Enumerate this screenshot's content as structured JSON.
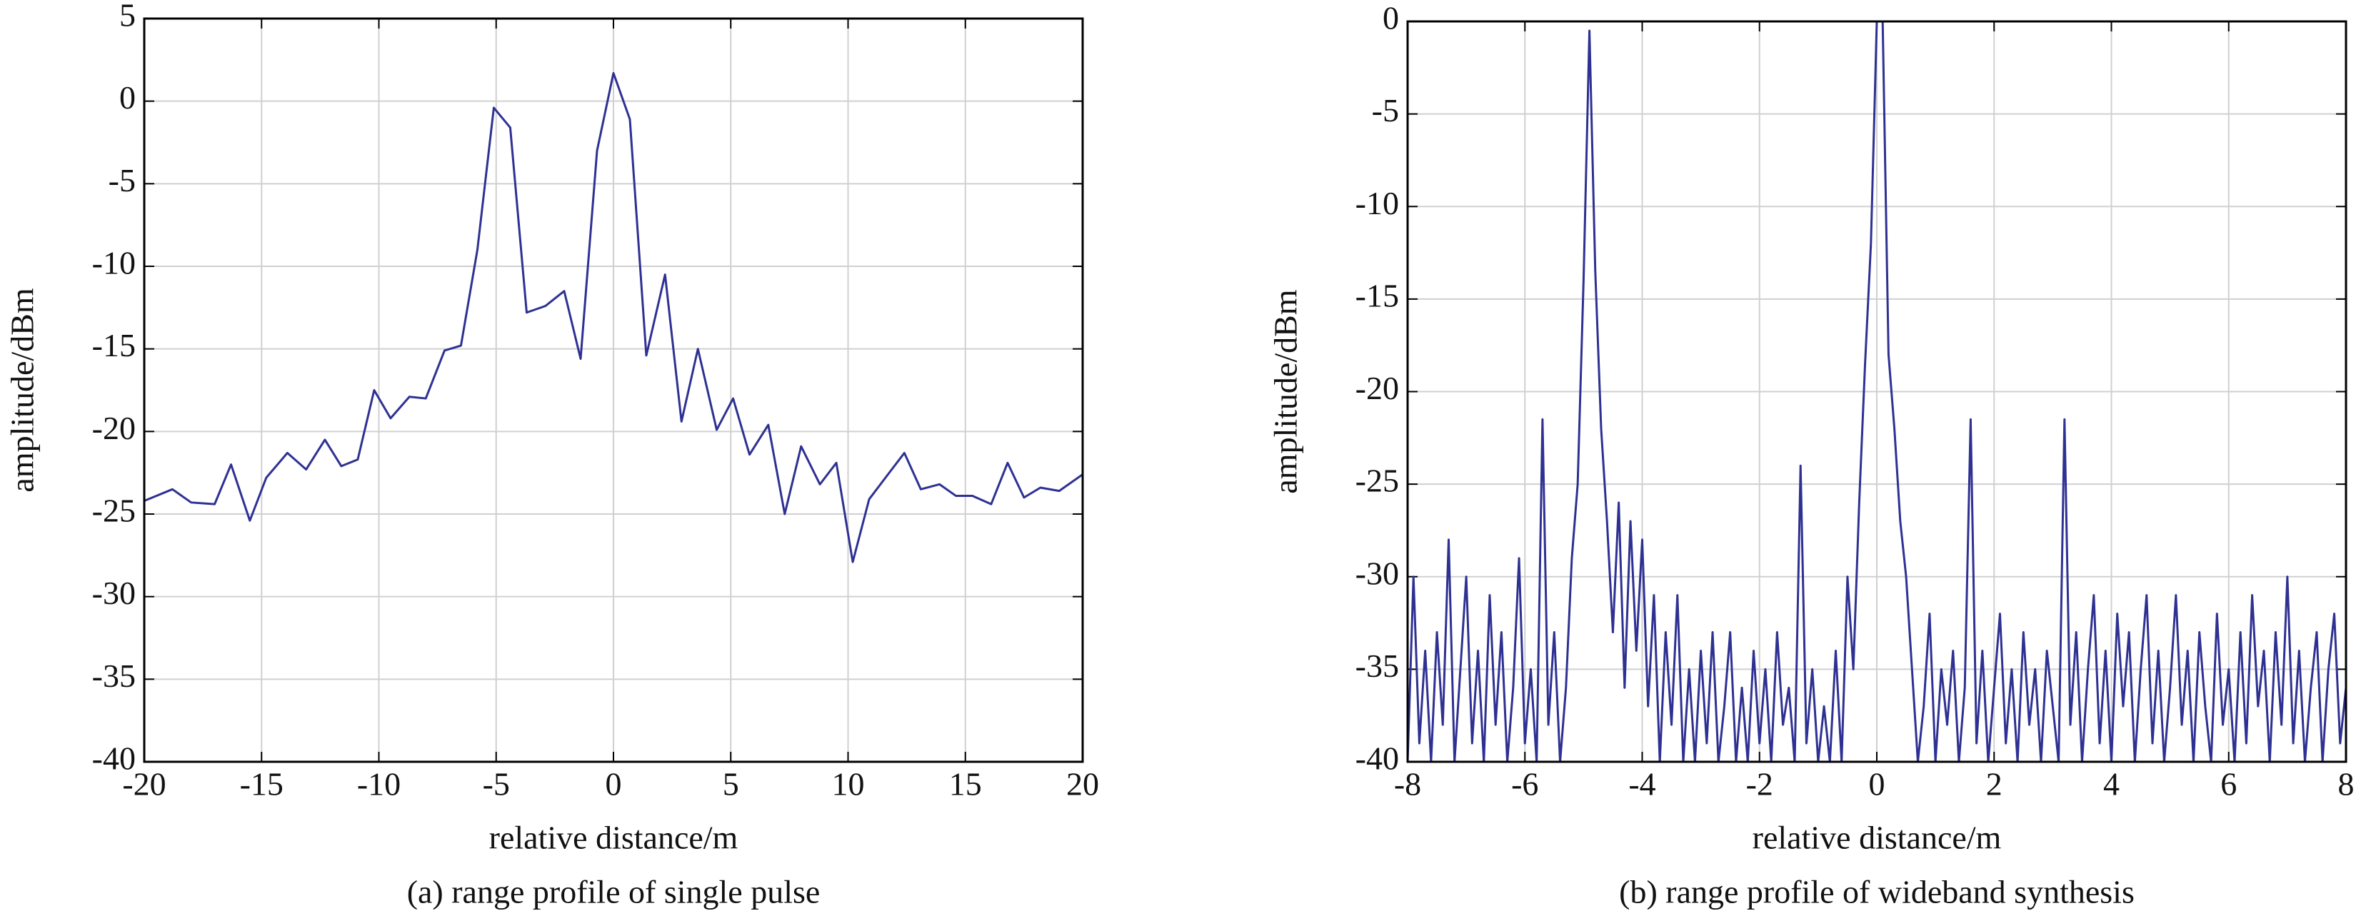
{
  "chart_data": [
    {
      "type": "line",
      "xlabel": "relative distance/m",
      "ylabel": "amplitude/dBm",
      "caption": "(a) range profile of single pulse",
      "color": "#2e3192",
      "xlim": [
        -20,
        20
      ],
      "ylim": [
        -40,
        5
      ],
      "xticks": [
        -20,
        -15,
        -10,
        -5,
        0,
        5,
        10,
        15,
        20
      ],
      "yticks": [
        -40,
        -35,
        -30,
        -25,
        -20,
        -15,
        -10,
        -5,
        0,
        5
      ],
      "grid": true,
      "x": [
        -20,
        -18.8,
        -18,
        -17,
        -16.3,
        -15.5,
        -14.8,
        -13.9,
        -13.1,
        -12.3,
        -11.6,
        -10.9,
        -10.2,
        -9.5,
        -8.7,
        -8,
        -7.2,
        -6.5,
        -5.8,
        -5.1,
        -4.4,
        -3.7,
        -2.9,
        -2.1,
        -1.4,
        -0.7,
        0,
        0.7,
        1.4,
        2.2,
        2.9,
        3.6,
        4.4,
        5.1,
        5.8,
        6.6,
        7.3,
        8,
        8.8,
        9.5,
        10.2,
        10.9,
        11.7,
        12.4,
        13.1,
        13.9,
        14.6,
        15.3,
        16.1,
        16.8,
        17.5,
        18.2,
        19,
        20
      ],
      "values": [
        -24.2,
        -23.5,
        -24.3,
        -24.4,
        -22,
        -25.4,
        -22.8,
        -21.3,
        -22.3,
        -20.5,
        -22.1,
        -21.7,
        -17.5,
        -19.2,
        -17.9,
        -18,
        -15.1,
        -14.8,
        -9,
        -0.4,
        -1.6,
        -12.8,
        -12.4,
        -11.5,
        -15.6,
        -3,
        1.7,
        -1.1,
        -15.4,
        -10.5,
        -19.4,
        -15,
        -19.9,
        -18,
        -21.4,
        -19.6,
        -25,
        -20.9,
        -23.2,
        -21.9,
        -27.9,
        -24.1,
        -22.6,
        -21.3,
        -23.5,
        -23.2,
        -23.9,
        -23.9,
        -24.4,
        -21.9,
        -24,
        -23.4,
        -23.6,
        -22.6
      ]
    },
    {
      "type": "line",
      "xlabel": "relative distance/m",
      "ylabel": "amplitude/dBm",
      "caption": "(b) range profile of wideband synthesis",
      "color": "#2e3192",
      "xlim": [
        -8,
        8
      ],
      "ylim": [
        -40,
        0
      ],
      "xticks": [
        -8,
        -6,
        -4,
        -2,
        0,
        2,
        4,
        6,
        8
      ],
      "yticks": [
        -40,
        -35,
        -30,
        -25,
        -20,
        -15,
        -10,
        -5,
        0
      ],
      "grid": true,
      "x": [
        -8,
        -7.9,
        -7.8,
        -7.7,
        -7.6,
        -7.5,
        -7.4,
        -7.3,
        -7.2,
        -7.1,
        -7,
        -6.9,
        -6.8,
        -6.7,
        -6.6,
        -6.5,
        -6.4,
        -6.3,
        -6.2,
        -6.1,
        -6,
        -5.9,
        -5.8,
        -5.7,
        -5.6,
        -5.5,
        -5.4,
        -5.3,
        -5.2,
        -5.1,
        -5,
        -4.9,
        -4.8,
        -4.7,
        -4.6,
        -4.5,
        -4.4,
        -4.3,
        -4.2,
        -4.1,
        -4,
        -3.9,
        -3.8,
        -3.7,
        -3.6,
        -3.5,
        -3.4,
        -3.3,
        -3.2,
        -3.1,
        -3,
        -2.9,
        -2.8,
        -2.7,
        -2.6,
        -2.5,
        -2.4,
        -2.3,
        -2.2,
        -2.1,
        -2,
        -1.9,
        -1.8,
        -1.7,
        -1.6,
        -1.5,
        -1.4,
        -1.3,
        -1.2,
        -1.1,
        -1,
        -0.9,
        -0.8,
        -0.7,
        -0.6,
        -0.5,
        -0.4,
        -0.3,
        -0.2,
        -0.1,
        0,
        0.1,
        0.2,
        0.3,
        0.4,
        0.5,
        0.6,
        0.7,
        0.8,
        0.9,
        1,
        1.1,
        1.2,
        1.3,
        1.4,
        1.5,
        1.6,
        1.7,
        1.8,
        1.9,
        2,
        2.1,
        2.2,
        2.3,
        2.4,
        2.5,
        2.6,
        2.7,
        2.8,
        2.9,
        3,
        3.1,
        3.2,
        3.3,
        3.4,
        3.5,
        3.6,
        3.7,
        3.8,
        3.9,
        4,
        4.1,
        4.2,
        4.3,
        4.4,
        4.5,
        4.6,
        4.7,
        4.8,
        4.9,
        5,
        5.1,
        5.2,
        5.3,
        5.4,
        5.5,
        5.6,
        5.7,
        5.8,
        5.9,
        6,
        6.1,
        6.2,
        6.3,
        6.4,
        6.5,
        6.6,
        6.7,
        6.8,
        6.9,
        7,
        7.1,
        7.2,
        7.3,
        7.4,
        7.5,
        7.6,
        7.7,
        7.8,
        7.9,
        8
      ],
      "values": [
        -40,
        -30,
        -39,
        -34,
        -40,
        -33,
        -38,
        -28,
        -40,
        -35,
        -30,
        -39,
        -34,
        -40,
        -31,
        -38,
        -33,
        -40,
        -36,
        -29,
        -39,
        -35,
        -40,
        -21.5,
        -38,
        -33,
        -40,
        -36,
        -29,
        -25,
        -14,
        -0.5,
        -13.5,
        -22,
        -27,
        -33,
        -26,
        -36,
        -27,
        -34,
        -28,
        -37,
        -31,
        -40,
        -33,
        -38,
        -31,
        -40,
        -35,
        -40,
        -34,
        -39,
        -33,
        -40,
        -37,
        -33,
        -40,
        -36,
        -40,
        -34,
        -39,
        -35,
        -40,
        -33,
        -38,
        -36,
        -40,
        -24,
        -39,
        -35,
        -40,
        -37,
        -40,
        -34,
        -40,
        -30,
        -35,
        -26,
        -18.5,
        -12,
        0,
        0,
        -18,
        -22,
        -27,
        -30,
        -35,
        -40,
        -37,
        -32,
        -40,
        -35,
        -38,
        -34,
        -40,
        -36,
        -21.5,
        -39,
        -34,
        -40,
        -36,
        -32,
        -39,
        -35,
        -40,
        -33,
        -38,
        -35,
        -40,
        -34,
        -37,
        -40,
        -21.5,
        -38,
        -33,
        -40,
        -35,
        -31,
        -39,
        -34,
        -40,
        -32,
        -37,
        -33,
        -40,
        -35,
        -31,
        -39,
        -34,
        -40,
        -36,
        -31,
        -38,
        -34,
        -40,
        -33,
        -37,
        -40,
        -32,
        -38,
        -35,
        -40,
        -33,
        -39,
        -31,
        -37,
        -34,
        -40,
        -33,
        -38,
        -30,
        -39,
        -34,
        -40,
        -36,
        -33,
        -40,
        -35,
        -32,
        -39,
        -36
      ]
    }
  ]
}
